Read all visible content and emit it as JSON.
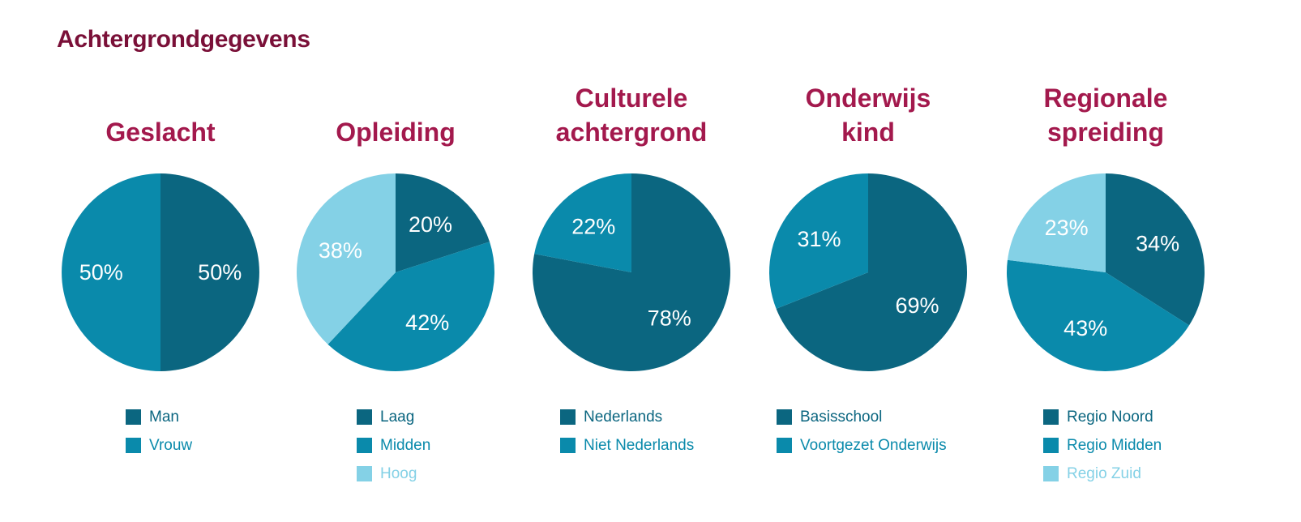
{
  "title": "Achtergrondgegevens",
  "colors": {
    "title": "#7a1038",
    "chart_title": "#a3194d",
    "dark": "#0b6680",
    "mid": "#0a8aab",
    "light": "#84d1e6"
  },
  "chart_data": [
    {
      "type": "pie",
      "title": "Geslacht",
      "slices": [
        {
          "label": "Man",
          "value": 50,
          "color": "#0b6680"
        },
        {
          "label": "Vrouw",
          "value": 50,
          "color": "#0a8aab"
        }
      ],
      "value_labels": [
        "50%",
        "50%"
      ],
      "legend_position": "bottom"
    },
    {
      "type": "pie",
      "title": "Opleiding",
      "slices": [
        {
          "label": "Laag",
          "value": 20,
          "color": "#0b6680"
        },
        {
          "label": "Midden",
          "value": 42,
          "color": "#0a8aab"
        },
        {
          "label": "Hoog",
          "value": 38,
          "color": "#84d1e6"
        }
      ],
      "value_labels": [
        "20%",
        "42%",
        "38%"
      ],
      "legend_position": "bottom"
    },
    {
      "type": "pie",
      "title": "Culturele\nachtergrond",
      "slices": [
        {
          "label": "Nederlands",
          "value": 78,
          "color": "#0b6680"
        },
        {
          "label": "Niet Nederlands",
          "value": 22,
          "color": "#0a8aab"
        }
      ],
      "value_labels": [
        "78%",
        "22%"
      ],
      "legend_position": "bottom"
    },
    {
      "type": "pie",
      "title": "Onderwijs\nkind",
      "slices": [
        {
          "label": "Basisschool",
          "value": 69,
          "color": "#0b6680"
        },
        {
          "label": "Voortgezet Onderwijs",
          "value": 31,
          "color": "#0a8aab"
        }
      ],
      "value_labels": [
        "69%",
        "31%"
      ],
      "legend_position": "bottom"
    },
    {
      "type": "pie",
      "title": "Regionale\nspreiding",
      "slices": [
        {
          "label": "Regio Noord",
          "value": 34,
          "color": "#0b6680"
        },
        {
          "label": "Regio Midden",
          "value": 43,
          "color": "#0a8aab"
        },
        {
          "label": "Regio Zuid",
          "value": 23,
          "color": "#84d1e6"
        }
      ],
      "value_labels": [
        "34%",
        "43%",
        "23%"
      ],
      "legend_position": "bottom"
    }
  ]
}
